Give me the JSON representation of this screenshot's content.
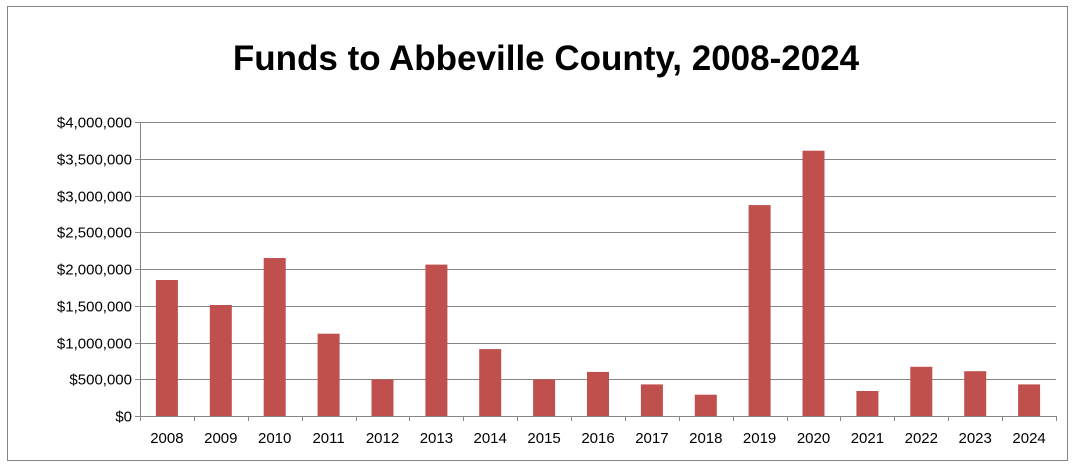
{
  "chart_data": {
    "type": "bar",
    "title": "Funds to Abbeville County, 2008-2024",
    "xlabel": "",
    "ylabel": "",
    "categories": [
      "2008",
      "2009",
      "2010",
      "2011",
      "2012",
      "2013",
      "2014",
      "2015",
      "2016",
      "2017",
      "2018",
      "2019",
      "2020",
      "2021",
      "2022",
      "2023",
      "2024"
    ],
    "values": [
      1850000,
      1510000,
      2150000,
      1120000,
      500000,
      2060000,
      910000,
      500000,
      600000,
      430000,
      290000,
      2870000,
      3610000,
      340000,
      670000,
      610000,
      430000
    ],
    "ylim": [
      0,
      4000000
    ],
    "yticks": [
      0,
      500000,
      1000000,
      1500000,
      2000000,
      2500000,
      3000000,
      3500000,
      4000000
    ],
    "ytick_labels": [
      "$0",
      "$500,000",
      "$1,000,000",
      "$1,500,000",
      "$2,000,000",
      "$2,500,000",
      "$3,000,000",
      "$3,500,000",
      "$4,000,000"
    ],
    "grid": true,
    "legend": "none",
    "colors": {
      "bar": "#C0504D",
      "gridline": "#868686",
      "axis": "#868686"
    }
  }
}
